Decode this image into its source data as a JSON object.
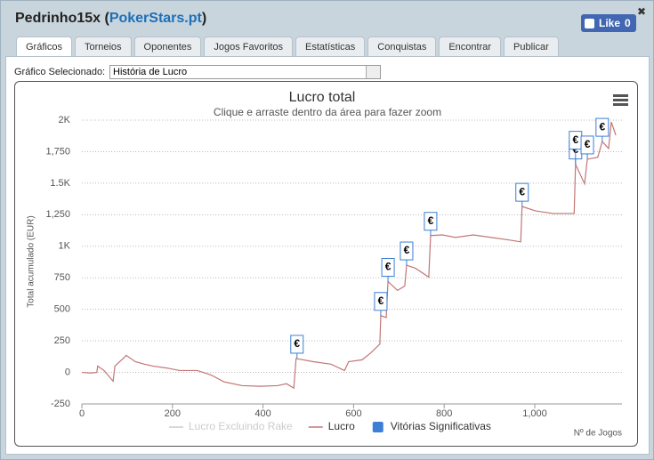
{
  "header": {
    "title_parts": [
      "Pedrinho15x (",
      "PokerStars.pt",
      ")"
    ],
    "like": {
      "label": "Like",
      "count": 0
    }
  },
  "tabs": [
    "Gráficos",
    "Torneios",
    "Oponentes",
    "Jogos Favoritos",
    "Estatísticas",
    "Conquistas",
    "Encontrar",
    "Publicar"
  ],
  "active_tab": 0,
  "selector": {
    "label": "Gráfico Selecionado:",
    "value": "História de Lucro"
  },
  "chart_data": {
    "type": "line",
    "title": "Lucro total",
    "subtitle": "Clique e arraste dentro da área para fazer zoom",
    "x_label": "Nº de Jogos",
    "y_label": "Total acumulado (EUR)",
    "xlim": [
      0,
      1190
    ],
    "xticks": [
      0,
      200,
      400,
      600,
      800,
      {
        "value": 1000,
        "label": "1,000"
      }
    ],
    "ylim": [
      -250,
      2000
    ],
    "yticks": [
      -250,
      0,
      250,
      500,
      750,
      {
        "value": 1000,
        "label": "1K"
      },
      {
        "value": 1250,
        "label": "1,250"
      },
      {
        "value": 1500,
        "label": "1.5K"
      },
      {
        "value": 1750,
        "label": "1,750"
      },
      {
        "value": 2000,
        "label": "2K"
      }
    ],
    "grid": true,
    "series": [
      {
        "name": "Lucro Excluindo Rake",
        "color": "#cccccc",
        "visible": false
      },
      {
        "name": "Lucro",
        "color": "#c27676",
        "x": [
          0,
          20,
          33,
          35,
          49,
          69,
          73,
          94,
          98,
          118,
          138,
          157,
          187,
          216,
          255,
          285,
          314,
          354,
          393,
          432,
          452,
          468,
          473,
          511,
          550,
          580,
          589,
          619,
          638,
          658,
          660,
          672,
          676,
          697,
          713,
          717,
          737,
          766,
          770,
          796,
          825,
          864,
          904,
          943,
          969,
          972,
          1002,
          1041,
          1081,
          1087,
          1090,
          1110,
          1116,
          1139,
          1149,
          1163,
          1169,
          1179
        ],
        "values": [
          0,
          -5,
          0,
          50,
          15,
          -70,
          50,
          120,
          135,
          85,
          65,
          50,
          35,
          15,
          15,
          -20,
          -75,
          -105,
          -110,
          -105,
          -90,
          -125,
          110,
          85,
          65,
          15,
          85,
          100,
          155,
          225,
          450,
          435,
          720,
          650,
          685,
          850,
          825,
          755,
          1085,
          1090,
          1070,
          1090,
          1070,
          1050,
          1035,
          1315,
          1280,
          1260,
          1260,
          1260,
          1650,
          1495,
          1690,
          1705,
          1830,
          1775,
          1985,
          1880
        ]
      },
      {
        "name": "Vitórias Significativas",
        "color": "#3d7fd6",
        "type": "flags",
        "label": "€",
        "x": [
          475,
          660,
          676,
          717,
          770,
          972,
          1090,
          1090,
          1116,
          1149
        ],
        "values": [
          110,
          450,
          720,
          850,
          1085,
          1315,
          1650,
          1650,
          1690,
          1830
        ]
      }
    ]
  }
}
